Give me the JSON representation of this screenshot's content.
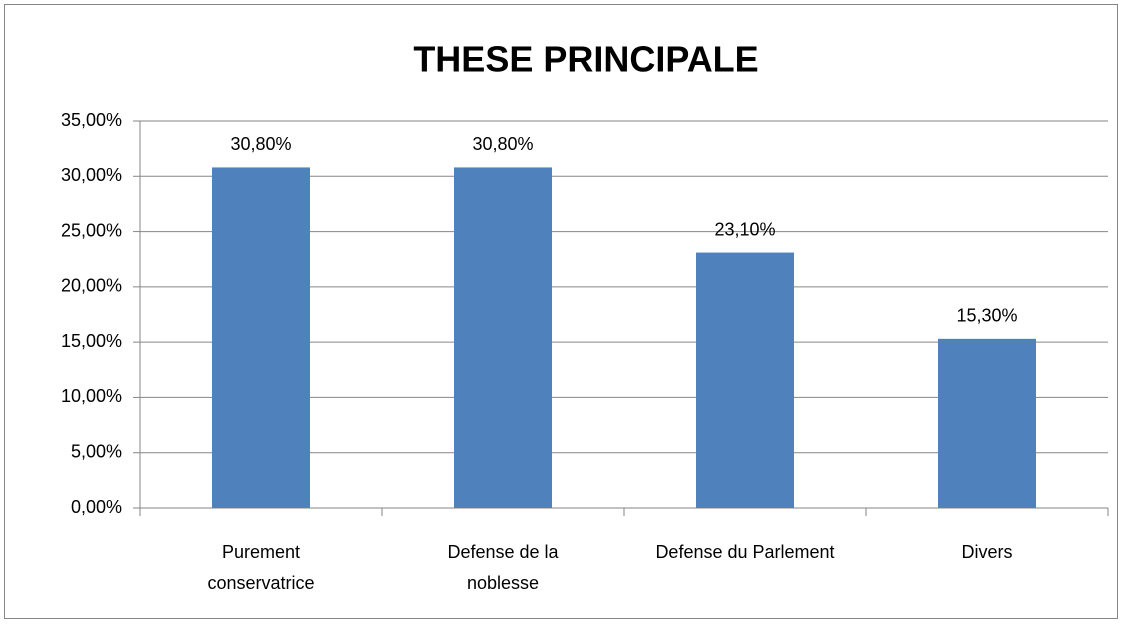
{
  "chart_data": {
    "type": "bar",
    "title": "THESE PRINCIPALE",
    "categories": [
      "Purement conservatrice",
      "Defense de la noblesse",
      "Defense du Parlement",
      "Divers"
    ],
    "values": [
      30.8,
      30.8,
      23.1,
      15.3
    ],
    "value_labels": [
      "30,80%",
      "30,80%",
      "23,10%",
      "15,30%"
    ],
    "color": "#4f81bd",
    "ylim": [
      0,
      35
    ],
    "yticks": [
      {
        "value": 0,
        "label": "0,00%"
      },
      {
        "value": 5,
        "label": "5,00%"
      },
      {
        "value": 10,
        "label": "10,00%"
      },
      {
        "value": 15,
        "label": "15,00%"
      },
      {
        "value": 20,
        "label": "20,00%"
      },
      {
        "value": 25,
        "label": "25,00%"
      },
      {
        "value": 30,
        "label": "30,00%"
      },
      {
        "value": 35,
        "label": "35,00%"
      }
    ],
    "grid": true
  }
}
